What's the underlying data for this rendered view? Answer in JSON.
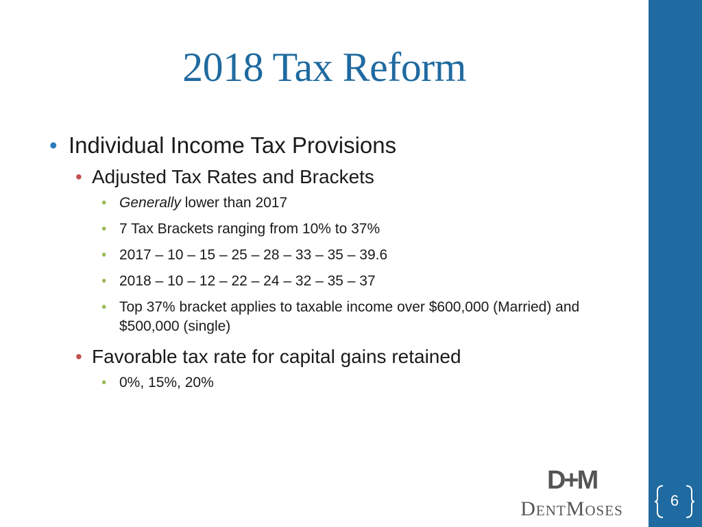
{
  "slide": {
    "title": "2018 Tax Reform",
    "bullets": {
      "level1": "Individual Income Tax Provisions",
      "rates": {
        "heading": "Adjusted Tax Rates and Brackets",
        "items": [
          {
            "emphasis": "Generally",
            "text": " lower than 2017"
          },
          {
            "text": "7 Tax Brackets ranging from 10% to 37%"
          },
          {
            "text": "2017 – 10 – 15 – 25 – 28 – 33 – 35 – 39.6"
          },
          {
            "text": "2018 – 10 – 12 – 22 – 24 – 32 – 35 – 37"
          },
          {
            "text": "Top 37% bracket applies to taxable income over $600,000 (Married) and $500,000 (single)"
          }
        ]
      },
      "capital_gains": {
        "heading": "Favorable tax rate for capital gains retained",
        "items": [
          {
            "text": "0%, 15%, 20%"
          }
        ]
      }
    },
    "logo": {
      "mark": "D+M",
      "wordmark": "DentMoses"
    },
    "page_number": "6",
    "colors": {
      "accent_blue": "#1f6aa0",
      "bullet_blue": "#2b7bbd",
      "bullet_red": "#c0504d",
      "bullet_green": "#9bbb59"
    }
  }
}
